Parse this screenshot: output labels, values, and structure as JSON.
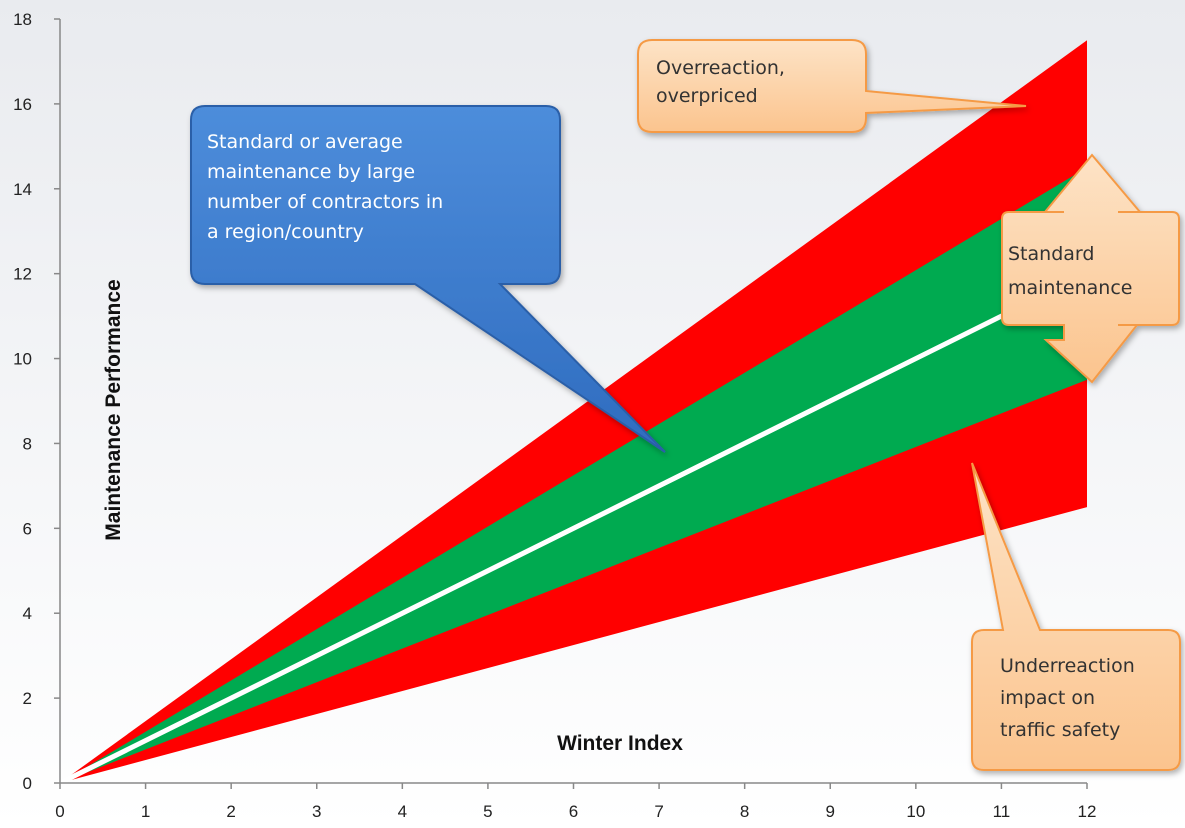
{
  "chart_data": {
    "type": "area",
    "xlabel": "Winter Index",
    "ylabel": "Maintenance Performance",
    "xlim": [
      0,
      12
    ],
    "ylim": [
      0,
      18
    ],
    "x_ticks": [
      "0",
      "1",
      "2",
      "3",
      "4",
      "5",
      "6",
      "7",
      "8",
      "9",
      "10",
      "11",
      "12"
    ],
    "y_ticks": [
      "0",
      "2",
      "4",
      "6",
      "8",
      "10",
      "12",
      "14",
      "16",
      "18"
    ],
    "grid": false,
    "legend": "none",
    "bands": [
      {
        "color": "#ff0000",
        "lower": {
          "x": [
            0,
            12
          ],
          "y": [
            0,
            6.5
          ]
        },
        "upper": {
          "x": [
            0,
            12
          ],
          "y": [
            0,
            17.5
          ]
        }
      },
      {
        "color": "#00aa50",
        "lower": {
          "x": [
            0,
            12
          ],
          "y": [
            0,
            9.5
          ]
        },
        "upper": {
          "x": [
            0,
            12
          ],
          "y": [
            0,
            14.5
          ]
        }
      }
    ],
    "series": [
      {
        "color": "#ffffff",
        "x": [
          0,
          12
        ],
        "y": [
          0,
          12
        ]
      }
    ],
    "annotations": [
      {
        "text": [
          "Overreaction,",
          "overpriced"
        ]
      },
      {
        "text": [
          "Standard or average",
          "maintenance by large",
          "number of contractors in",
          "a region/country"
        ]
      },
      {
        "text": [
          "Standard",
          "maintenance"
        ]
      },
      {
        "text": [
          "Underreaction",
          "impact on",
          "traffic safety"
        ]
      }
    ]
  },
  "colors": {
    "red_band": "#ff0000",
    "green_band": "#00aa50",
    "white_line": "#ffffff",
    "callout_orange_fill": "#fcd3a8",
    "callout_orange_border": "#f59a45",
    "callout_blue_fill": "#3f7fd0",
    "callout_blue_border": "#2a5fa8"
  }
}
